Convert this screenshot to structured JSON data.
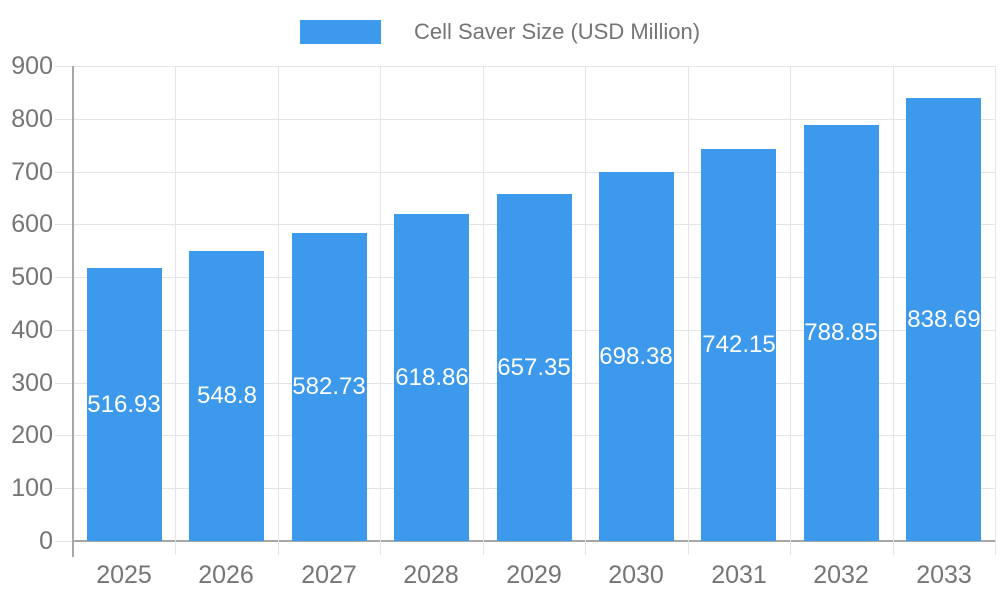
{
  "chart_data": {
    "type": "bar",
    "title": "Cell Saver Size (USD Million)",
    "series_name": "Cell Saver Size (USD Million)",
    "categories": [
      "2025",
      "2026",
      "2027",
      "2028",
      "2029",
      "2030",
      "2031",
      "2032",
      "2033"
    ],
    "values": [
      516.93,
      548.8,
      582.73,
      618.86,
      657.35,
      698.38,
      742.15,
      788.85,
      838.69
    ],
    "value_labels": [
      "516.93",
      "548.8",
      "582.73",
      "618.86",
      "657.35",
      "698.38",
      "742.15",
      "788.85",
      "838.69"
    ],
    "xlabel": "",
    "ylabel": "",
    "ylim": [
      0,
      900
    ],
    "ytick_step": 100,
    "ytick_labels": [
      "0",
      "100",
      "200",
      "300",
      "400",
      "500",
      "600",
      "700",
      "800",
      "900"
    ],
    "grid": true,
    "legend_position": "top",
    "colors": {
      "bar": "#3c99ec",
      "value_label": "#ffffff",
      "axis_text": "#757575",
      "grid_line": "#e4e4e4",
      "axis_line": "#a7a7a7",
      "background": "#ffffff"
    }
  }
}
